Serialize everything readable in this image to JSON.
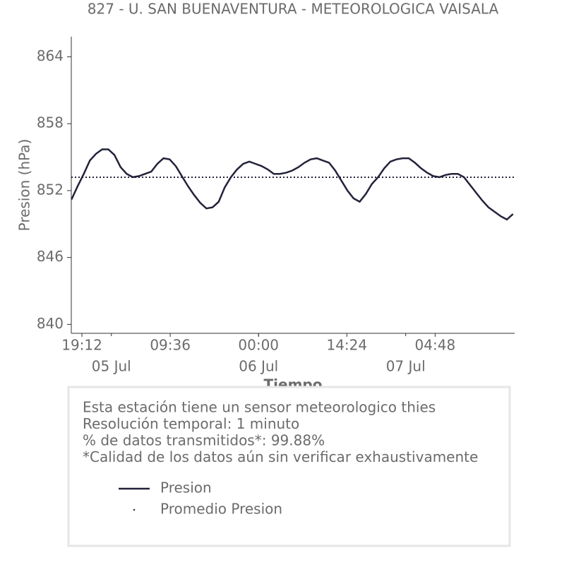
{
  "chart_data": {
    "type": "line",
    "title": "827 - U. SAN BUENAVENTURA - METEOROLOGICA VAISALA",
    "x_label": "Tiempo",
    "y_label": "Presion (hPa)",
    "x": [
      "04 Jul 17:30",
      "04 Jul 18:30",
      "04 Jul 19:30",
      "04 Jul 20:30",
      "04 Jul 21:30",
      "04 Jul 22:30",
      "04 Jul 23:30",
      "05 Jul 00:30",
      "05 Jul 01:30",
      "05 Jul 02:30",
      "05 Jul 03:30",
      "05 Jul 04:30",
      "05 Jul 05:30",
      "05 Jul 06:30",
      "05 Jul 07:30",
      "05 Jul 08:30",
      "05 Jul 09:30",
      "05 Jul 10:30",
      "05 Jul 11:30",
      "05 Jul 12:30",
      "05 Jul 13:30",
      "05 Jul 14:30",
      "05 Jul 15:30",
      "05 Jul 16:30",
      "05 Jul 17:30",
      "05 Jul 18:30",
      "05 Jul 19:30",
      "05 Jul 20:30",
      "05 Jul 21:30",
      "05 Jul 22:30",
      "05 Jul 23:30",
      "06 Jul 00:30",
      "06 Jul 01:30",
      "06 Jul 02:30",
      "06 Jul 03:30",
      "06 Jul 04:30",
      "06 Jul 05:30",
      "06 Jul 06:30",
      "06 Jul 07:30",
      "06 Jul 08:30",
      "06 Jul 09:30",
      "06 Jul 10:30",
      "06 Jul 11:30",
      "06 Jul 12:30",
      "06 Jul 13:30",
      "06 Jul 14:30",
      "06 Jul 15:30",
      "06 Jul 16:30",
      "06 Jul 17:30",
      "06 Jul 18:30",
      "06 Jul 19:30",
      "06 Jul 20:30",
      "06 Jul 21:30",
      "06 Jul 22:30",
      "06 Jul 23:30",
      "07 Jul 00:30",
      "07 Jul 01:30",
      "07 Jul 02:30",
      "07 Jul 03:30",
      "07 Jul 04:30",
      "07 Jul 05:30",
      "07 Jul 06:30",
      "07 Jul 07:30",
      "07 Jul 08:30",
      "07 Jul 09:30",
      "07 Jul 10:30",
      "07 Jul 11:30",
      "07 Jul 12:30",
      "07 Jul 13:30",
      "07 Jul 14:30",
      "07 Jul 15:30",
      "07 Jul 16:30",
      "07 Jul 17:30"
    ],
    "series": [
      {
        "name": "Presion",
        "color": "#22223b",
        "values": [
          851.2,
          852.4,
          853.5,
          854.7,
          855.3,
          855.7,
          855.7,
          855.2,
          854.1,
          853.5,
          853.2,
          853.3,
          853.5,
          853.7,
          854.4,
          854.9,
          854.8,
          854.2,
          853.3,
          852.4,
          851.6,
          850.9,
          850.4,
          850.5,
          851.0,
          852.3,
          853.2,
          853.9,
          854.4,
          854.6,
          854.4,
          854.2,
          853.9,
          853.5,
          853.5,
          853.6,
          853.8,
          854.1,
          854.5,
          854.8,
          854.9,
          854.7,
          854.5,
          853.8,
          852.9,
          852.0,
          851.3,
          851.0,
          851.7,
          852.6,
          853.2,
          854.0,
          854.6,
          854.8,
          854.9,
          854.9,
          854.5,
          854.0,
          853.6,
          853.3,
          853.2,
          853.4,
          853.5,
          853.5,
          853.2,
          852.5,
          851.8,
          851.1,
          850.5,
          850.1,
          849.7,
          849.4,
          849.9
        ]
      },
      {
        "name": "Promedio Presion",
        "color": "#22223b",
        "value": 853.2
      }
    ],
    "xlim": [
      "04 Jul 17:28",
      "07 Jul 17:46"
    ],
    "xticks": [
      {
        "value": "04 Jul 19:12",
        "label": "19:12"
      },
      {
        "value": "05 Jul 09:36",
        "label": "09:36"
      },
      {
        "value": "06 Jul 00:00",
        "label": "00:00"
      },
      {
        "value": "06 Jul 14:24",
        "label": "14:24"
      },
      {
        "value": "07 Jul 04:48",
        "label": "04:48"
      }
    ],
    "xticks_dates": [
      {
        "value": "05 Jul 00:00",
        "label": "05 Jul"
      },
      {
        "value": "06 Jul 00:00",
        "label": "06 Jul"
      },
      {
        "value": "07 Jul 00:00",
        "label": "07 Jul"
      }
    ],
    "ylim": [
      839.2,
      865.8
    ],
    "yticks": [
      840,
      846,
      852,
      858,
      864
    ],
    "info": [
      "Esta estación tiene un sensor meteorologico thies",
      "Resolución temporal: 1 minuto",
      "% de datos transmitidos*: 99.88%",
      "*Calidad de los datos aún sin verificar exhaustivamente"
    ]
  }
}
